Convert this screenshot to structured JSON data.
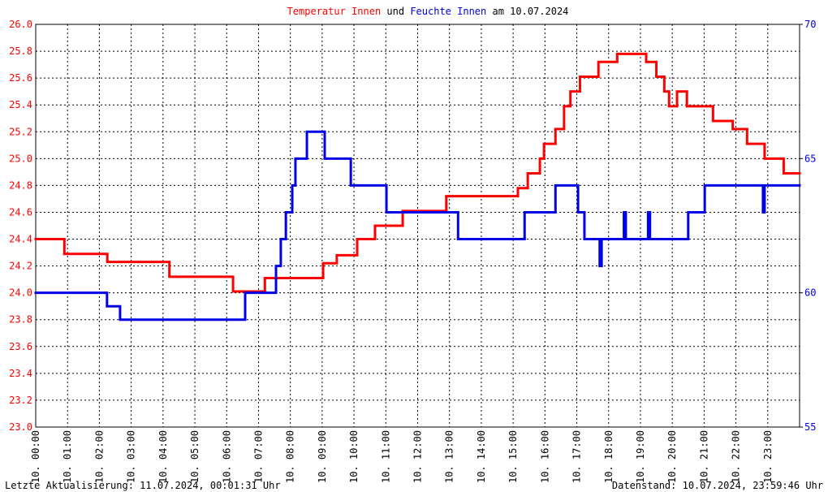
{
  "chart_data": {
    "type": "step-line",
    "title_joiner": "und",
    "title_suffix": "am 10.07.2024",
    "footer_left": "Letzte Aktualisierung: 11.07.2024, 00:01:31 Uhr",
    "footer_right": "Datenstand: 10.07.2024, 23:59:46 Uhr",
    "xlim": [
      0,
      24
    ],
    "xticks": [
      {
        "value": 0,
        "label": "10. 00:00"
      },
      {
        "value": 1,
        "label": "10. 01:00"
      },
      {
        "value": 2,
        "label": "10. 02:00"
      },
      {
        "value": 3,
        "label": "10. 03:00"
      },
      {
        "value": 4,
        "label": "10. 04:00"
      },
      {
        "value": 5,
        "label": "10. 05:00"
      },
      {
        "value": 6,
        "label": "10. 06:00"
      },
      {
        "value": 7,
        "label": "10. 07:00"
      },
      {
        "value": 8,
        "label": "10. 08:00"
      },
      {
        "value": 9,
        "label": "10. 09:00"
      },
      {
        "value": 10,
        "label": "10. 10:00"
      },
      {
        "value": 11,
        "label": "10. 11:00"
      },
      {
        "value": 12,
        "label": "10. 12:00"
      },
      {
        "value": 13,
        "label": "10. 13:00"
      },
      {
        "value": 14,
        "label": "10. 14:00"
      },
      {
        "value": 15,
        "label": "10. 15:00"
      },
      {
        "value": 16,
        "label": "10. 16:00"
      },
      {
        "value": 17,
        "label": "10. 17:00"
      },
      {
        "value": 18,
        "label": "10. 18:00"
      },
      {
        "value": 19,
        "label": "10. 19:00"
      },
      {
        "value": 20,
        "label": "10. 20:00"
      },
      {
        "value": 21,
        "label": "10. 21:00"
      },
      {
        "value": 22,
        "label": "10. 22:00"
      },
      {
        "value": 23,
        "label": "10. 23:00"
      }
    ],
    "ylim": [
      23.0,
      26.0
    ],
    "yticks": [
      {
        "value": 23.0,
        "label": "23.0"
      },
      {
        "value": 23.2,
        "label": "23.2"
      },
      {
        "value": 23.4,
        "label": "23.4"
      },
      {
        "value": 23.6,
        "label": "23.6"
      },
      {
        "value": 23.8,
        "label": "23.8"
      },
      {
        "value": 24.0,
        "label": "24.0"
      },
      {
        "value": 24.2,
        "label": "24.2"
      },
      {
        "value": 24.4,
        "label": "24.4"
      },
      {
        "value": 24.6,
        "label": "24.6"
      },
      {
        "value": 24.8,
        "label": "24.8"
      },
      {
        "value": 25.0,
        "label": "25.0"
      },
      {
        "value": 25.2,
        "label": "25.2"
      },
      {
        "value": 25.4,
        "label": "25.4"
      },
      {
        "value": 25.6,
        "label": "25.6"
      },
      {
        "value": 25.8,
        "label": "25.8"
      },
      {
        "value": 26.0,
        "label": "26.0"
      }
    ],
    "y2lim": [
      55,
      70
    ],
    "y2ticks": [
      55,
      60,
      65,
      70
    ],
    "grid": true,
    "series": [
      {
        "name": "Temperatur Innen",
        "color": "#ff0000",
        "x": [
          0,
          0.9,
          2.25,
          4.2,
          6.2,
          7.2,
          9.03,
          9.46,
          10.1,
          10.66,
          11.53,
          12.9,
          15.15,
          15.46,
          15.84,
          15.97,
          16.33,
          16.6,
          16.8,
          17.1,
          17.68,
          18.27,
          19.18,
          19.5,
          19.75,
          19.9,
          20.15,
          20.46,
          21.28,
          21.9,
          22.35,
          22.9,
          23.5
        ],
        "values": [
          24.4,
          24.29,
          24.23,
          24.12,
          24.01,
          24.11,
          24.22,
          24.28,
          24.4,
          24.5,
          24.61,
          24.72,
          24.78,
          24.89,
          25.0,
          25.11,
          25.22,
          25.39,
          25.5,
          25.61,
          25.72,
          25.78,
          25.72,
          25.61,
          25.5,
          25.39,
          25.5,
          25.39,
          25.28,
          25.22,
          25.11,
          25.0,
          24.89
        ]
      },
      {
        "name": "Feuchte Innen",
        "color": "#0000e6",
        "axis": "y2",
        "x": [
          0,
          2.24,
          2.65,
          6.58,
          7.55,
          7.7,
          7.86,
          8.06,
          8.16,
          8.52,
          9.08,
          9.9,
          11.02,
          13.27,
          15.36,
          16.33,
          17.04,
          17.24,
          17.72,
          17.78,
          18.48,
          18.54,
          19.24,
          19.3,
          20.5,
          21.02,
          22.85,
          22.9
        ],
        "values": [
          60,
          59.5,
          59,
          60,
          61,
          62,
          63,
          64,
          65,
          66,
          65,
          64,
          63,
          62,
          63,
          64,
          63,
          62,
          61,
          62,
          63,
          62,
          63,
          62,
          63,
          64,
          63,
          64
        ]
      }
    ]
  }
}
